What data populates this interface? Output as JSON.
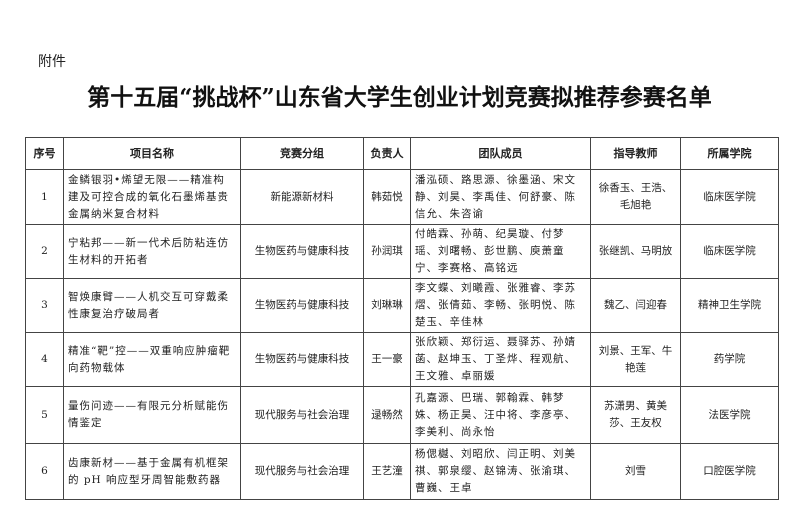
{
  "attachment_label": "附件",
  "title": "第十五届“挑战杯”山东省大学生创业计划竞赛拟推荐参赛名单",
  "table": {
    "headers": [
      "序号",
      "项目名称",
      "竞赛分组",
      "负责人",
      "团队成员",
      "指导教师",
      "所属学院"
    ],
    "rows": [
      {
        "no": "1",
        "project": "金鳞银羽•烯望无限——精准构建及可控合成的氧化石墨烯基贵金属纳米复合材料",
        "group": "新能源新材料",
        "leader": "韩茹悦",
        "members": "潘泓硕、路思源、徐墨涵、宋文静、刘昊、李禹佳、何舒豪、陈信允、朱咨谕",
        "advisors": "徐香玉、王浩、毛旭艳",
        "college": "临床医学院"
      },
      {
        "no": "2",
        "project": "宁粘邦——新一代术后防粘连仿生材料的开拓者",
        "group": "生物医药与健康科技",
        "leader": "孙润琪",
        "members": "付皓霖、孙萌、纪昊璇、付梦瑶、刘曙畅、彭世鹏、庾萧童宁、李赛格、高铭远",
        "advisors": "张继凯、马明放",
        "college": "临床医学院"
      },
      {
        "no": "3",
        "project": "智焕康臂——人机交互可穿戴柔性康复治疗破局者",
        "group": "生物医药与健康科技",
        "leader": "刘琳琳",
        "members": "李文蝶、刘曦霞、张雅睿、李苏熠、张倩茹、李畅、张明悦、陈楚玉、辛佳林",
        "advisors": "魏乙、闫迎春",
        "college": "精神卫生学院"
      },
      {
        "no": "4",
        "project": "精准“靶”控——双重响应肿瘤靶向药物载体",
        "group": "生物医药与健康科技",
        "leader": "王一豪",
        "members": "张欣颖、郑衍运、聂驿苏、孙婧菡、赵坤玉、丁圣烨、程观航、王文雅、卓丽媛",
        "advisors": "刘景、王军、牛艳莲",
        "college": "药学院"
      },
      {
        "no": "5",
        "project": "量伤问迹——有限元分析赋能伤情鉴定",
        "group": "现代服务与社会治理",
        "leader": "逯畅然",
        "members": "孔嘉源、巴瑞、郭翰霖、韩梦姝、杨正昊、汪中将、李彦亭、李美利、尚永怡",
        "advisors": "苏潇男、黄美莎、王友权",
        "college": "法医学院"
      },
      {
        "no": "6",
        "project": "齿康新材——基于金属有机框架的 pH 响应型牙周智能敷药器",
        "group": "现代服务与社会治理",
        "leader": "王艺潼",
        "members": "杨偲樾、刘昭欣、闫正明、刘美祺、郭泉缨、赵锦涛、张渝琪、曹巍、王卓",
        "advisors": "刘雪",
        "college": "口腔医学院"
      }
    ]
  }
}
